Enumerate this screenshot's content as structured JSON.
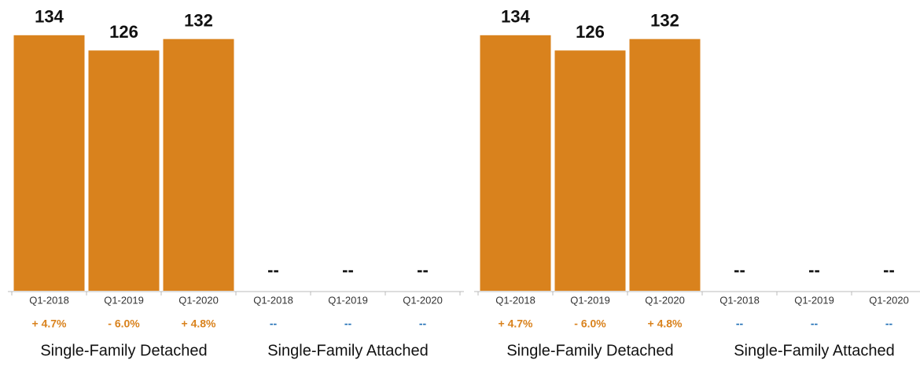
{
  "chart_data": [
    {
      "type": "bar",
      "color": "#d9821d",
      "ylim": [
        0,
        150
      ],
      "groups": [
        {
          "name": "Single-Family Detached",
          "categories": [
            "Q1-2018",
            "Q1-2019",
            "Q1-2020"
          ],
          "values": [
            134,
            126,
            132
          ],
          "changes": [
            "+ 4.7%",
            "- 6.0%",
            "+ 4.8%"
          ]
        },
        {
          "name": "Single-Family Attached",
          "categories": [
            "Q1-2018",
            "Q1-2019",
            "Q1-2020"
          ],
          "values": [
            null,
            null,
            null
          ],
          "value_labels": [
            "--",
            "--",
            "--"
          ],
          "changes": [
            "--",
            "--",
            "--"
          ]
        }
      ]
    },
    {
      "type": "bar",
      "color": "#d9821d",
      "ylim": [
        0,
        150
      ],
      "groups": [
        {
          "name": "Single-Family Detached",
          "categories": [
            "Q1-2018",
            "Q1-2019",
            "Q1-2020"
          ],
          "values": [
            134,
            126,
            132
          ],
          "changes": [
            "+ 4.7%",
            "- 6.0%",
            "+ 4.8%"
          ]
        },
        {
          "name": "Single-Family Attached",
          "categories": [
            "Q1-2018",
            "Q1-2019",
            "Q1-2020"
          ],
          "values": [
            null,
            null,
            null
          ],
          "value_labels": [
            "--",
            "--",
            "--"
          ],
          "changes": [
            "--",
            "--",
            "--"
          ]
        }
      ]
    }
  ]
}
